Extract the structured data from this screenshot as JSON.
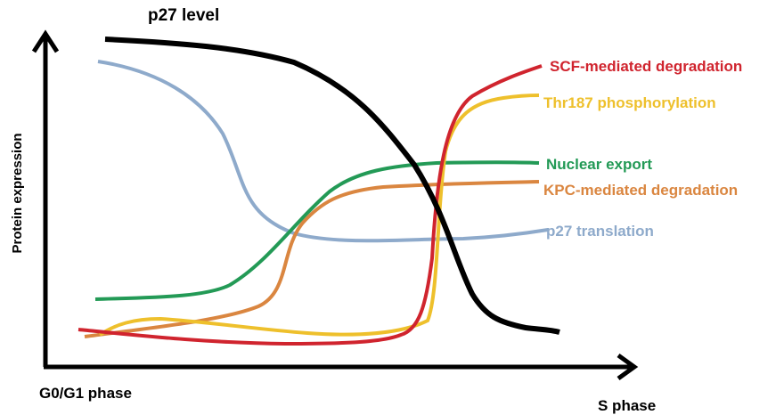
{
  "labels": {
    "title": "p27 level",
    "yaxis": "Protein expression",
    "x_start": "G0/G1 phase",
    "x_end": "S phase"
  },
  "curves": {
    "scf": {
      "label": "SCF-mediated degradation",
      "color": "#d0242e"
    },
    "thr": {
      "label": "Thr187 phosphorylation",
      "color": "#eec02c"
    },
    "nuclear": {
      "label": "Nuclear export",
      "color": "#239a56"
    },
    "kpc": {
      "label": "KPC-mediated degradation",
      "color": "#da8640"
    },
    "translation": {
      "label": "p27 translation",
      "color": "#8eaacb"
    },
    "p27": {
      "color": "#000000"
    }
  }
}
